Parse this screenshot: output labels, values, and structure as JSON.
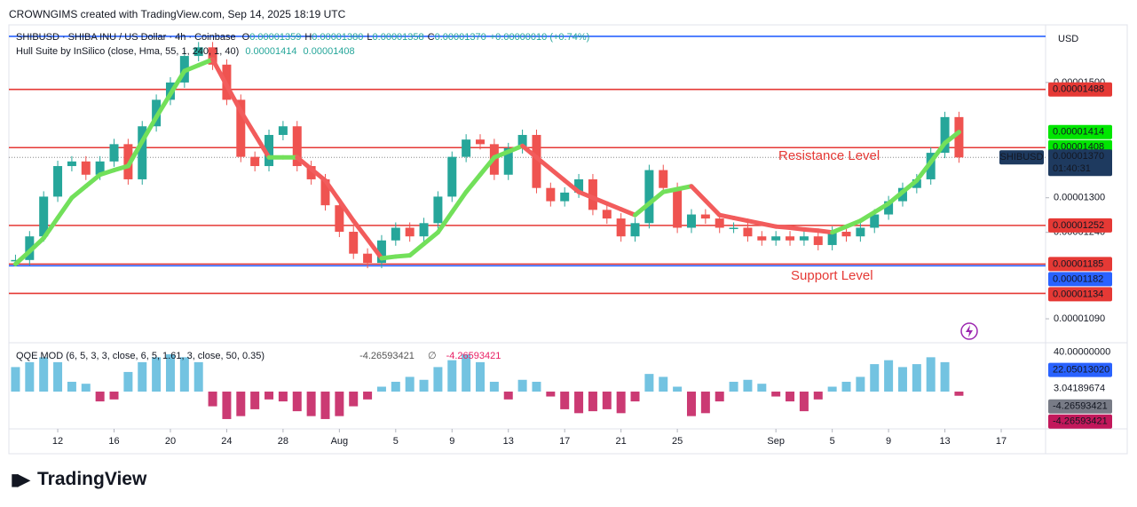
{
  "header": "CROWNGIMS created with TradingView.com, Sep 14, 2025 18:19 UTC",
  "brand": "TradingView",
  "currency": "USD",
  "chart_data": [
    {
      "type": "candle-line",
      "legend_title": "SHIBUSD · SHIBA INU / US Dollar · 4h · Coinbase",
      "ohlc": [
        {
          "key": "O",
          "value": "0.00001359"
        },
        {
          "key": "H",
          "value": "0.00001380"
        },
        {
          "key": "L",
          "value": "0.00001358"
        },
        {
          "key": "C",
          "value": "0.00001370"
        }
      ],
      "change": "+0.00000010 (+0.74%)",
      "indicator_values": [
        1.414e-05,
        1.408e-05
      ],
      "countdown": "01:40:31",
      "annotations": [
        "Resistance Level",
        "Support Level"
      ],
      "up_color": "#26a69a",
      "down_color": "#ef5350",
      "x": [
        9,
        10,
        11,
        12,
        13,
        14,
        15,
        16,
        17,
        18,
        19,
        20,
        21,
        22,
        23,
        24,
        25,
        26,
        27,
        28,
        29,
        30,
        31,
        32,
        33,
        34,
        35,
        36,
        37,
        38,
        39,
        40,
        41,
        42,
        43,
        44,
        45,
        46,
        47,
        48,
        49,
        50,
        51,
        52,
        53,
        54,
        55,
        56,
        57,
        58,
        59,
        60,
        61,
        62,
        63,
        64,
        65,
        66,
        67,
        68,
        69,
        70,
        71,
        72,
        73,
        74,
        75,
        76
      ],
      "series": [
        {
          "name": "SHIBUSD",
          "color": "#1e3a5f",
          "values": [
            1.192e-05,
            1.233e-05,
            1.302e-05,
            1.355e-05,
            1.363e-05,
            1.34e-05,
            1.363e-05,
            1.393e-05,
            1.332e-05,
            1.424e-05,
            1.47e-05,
            1.5e-05,
            1.546e-05,
            1.561e-05,
            1.531e-05,
            1.47e-05,
            1.371e-05,
            1.355e-05,
            1.409e-05,
            1.424e-05,
            1.355e-05,
            1.332e-05,
            1.287e-05,
            1.241e-05,
            1.203e-05,
            1.187e-05,
            1.226e-05,
            1.248e-05,
            1.233e-05,
            1.256e-05,
            1.302e-05,
            1.371e-05,
            1.401e-05,
            1.393e-05,
            1.34e-05,
            1.386e-05,
            1.409e-05,
            1.317e-05,
            1.294e-05,
            1.309e-05,
            1.332e-05,
            1.279e-05,
            1.264e-05,
            1.233e-05,
            1.256e-05,
            1.348e-05,
            1.317e-05,
            1.248e-05,
            1.271e-05,
            1.264e-05,
            1.248e-05,
            1.248e-05,
            1.233e-05,
            1.226e-05,
            1.233e-05,
            1.226e-05,
            1.233e-05,
            1.218e-05,
            1.241e-05,
            1.233e-05,
            1.248e-05,
            1.271e-05,
            1.294e-05,
            1.317e-05,
            1.332e-05,
            1.378e-05,
            1.44e-05,
            1.37e-05
          ]
        },
        {
          "name": "Hull Suite by InSilico (close, Hma, 55, 1, 240, 1, 40)",
          "color": "#72e05a",
          "down_color": "#f25c5c",
          "values": [
            1.185e-05,
            1.207e-05,
            1.23e-05,
            1.265e-05,
            1.3e-05,
            1.32e-05,
            1.34e-05,
            1.348e-05,
            1.355e-05,
            1.398e-05,
            1.44e-05,
            1.48e-05,
            1.52e-05,
            1.53e-05,
            1.54e-05,
            1.495e-05,
            1.45e-05,
            1.41e-05,
            1.37e-05,
            1.37e-05,
            1.37e-05,
            1.35e-05,
            1.33e-05,
            1.295e-05,
            1.26e-05,
            1.228e-05,
            1.195e-05,
            1.198e-05,
            1.2e-05,
            1.22e-05,
            1.24e-05,
            1.275e-05,
            1.31e-05,
            1.34e-05,
            1.37e-05,
            1.38e-05,
            1.39e-05,
            1.37e-05,
            1.35e-05,
            1.33e-05,
            1.31e-05,
            1.3e-05,
            1.29e-05,
            1.28e-05,
            1.27e-05,
            1.29e-05,
            1.31e-05,
            1.315e-05,
            1.32e-05,
            1.295e-05,
            1.27e-05,
            1.265e-05,
            1.26e-05,
            1.255e-05,
            1.25e-05,
            1.248e-05,
            1.245e-05,
            1.243e-05,
            1.24e-05,
            1.25e-05,
            1.26e-05,
            1.275e-05,
            1.29e-05,
            1.31e-05,
            1.33e-05,
            1.362e-05,
            1.395e-05,
            1.414e-05
          ]
        }
      ],
      "levels": [
        {
          "value": 1.58e-05,
          "color": "#2962ff",
          "labeled": false
        },
        {
          "value": 1.488e-05,
          "color": "#e53935",
          "labeled": true
        },
        {
          "value": 1.387e-05,
          "color": "#e53935",
          "labeled": true
        },
        {
          "value": 1.252e-05,
          "color": "#e53935",
          "labeled": true
        },
        {
          "value": 1.185e-05,
          "color": "#e53935",
          "labeled": true
        },
        {
          "value": 1.182e-05,
          "color": "#2962ff",
          "labeled": true
        },
        {
          "value": 1.134e-05,
          "color": "#e53935",
          "labeled": true
        }
      ],
      "xlim": [
        8.53,
        82.15
      ],
      "ylim": [
        1.05e-05,
        1.6e-05
      ],
      "yticks": [
        {
          "value": 1.5e-05,
          "label": "0.00001500"
        },
        {
          "value": 1.3e-05,
          "label": "0.00001300"
        },
        {
          "value": 1.24e-05,
          "label": "0.00001240"
        },
        {
          "value": 1.09e-05,
          "label": "0.00001090"
        }
      ],
      "xticks": [
        12,
        16,
        20,
        24,
        28,
        {
          "value": 32,
          "label": "Aug"
        },
        {
          "value": 36,
          "label": "5"
        },
        {
          "value": 40,
          "label": "9"
        },
        {
          "value": 44,
          "label": "13"
        },
        {
          "value": 48,
          "label": "17"
        },
        {
          "value": 52,
          "label": "21"
        },
        {
          "value": 56,
          "label": "25"
        },
        {
          "value": 63,
          "label": "Sep"
        },
        {
          "value": 67,
          "label": "5"
        },
        {
          "value": 71,
          "label": "9"
        },
        {
          "value": 75,
          "label": "13"
        },
        {
          "value": 79,
          "label": "17"
        }
      ],
      "grid": false
    },
    {
      "type": "histogram",
      "title": "QQE MOD (6, 5, 3, 3, close, 6, 5, 1.61, 3, close, 50, 0.35)",
      "empty_symbol": "∅",
      "x": [
        9,
        10,
        11,
        12,
        13,
        14,
        15,
        16,
        17,
        18,
        19,
        20,
        21,
        22,
        23,
        24,
        25,
        26,
        27,
        28,
        29,
        30,
        31,
        32,
        33,
        34,
        35,
        36,
        37,
        38,
        39,
        40,
        41,
        42,
        43,
        44,
        45,
        46,
        47,
        48,
        49,
        50,
        51,
        52,
        53,
        54,
        55,
        56,
        57,
        58,
        59,
        60,
        61,
        62,
        63,
        64,
        65,
        66,
        67,
        68,
        69,
        70,
        71,
        72,
        73,
        74,
        75,
        76
      ],
      "series": [
        {
          "color": "#5ab9dc",
          "negative_color": "#c2185b",
          "values": [
            25,
            30,
            35,
            30,
            10,
            8,
            -10,
            -8,
            20,
            30,
            35,
            38,
            35,
            30,
            -15,
            -28,
            -25,
            -18,
            -8,
            -10,
            -20,
            -25,
            -28,
            -25,
            -15,
            -8,
            5,
            10,
            15,
            12,
            25,
            32,
            38,
            30,
            10,
            -8,
            12,
            10,
            -5,
            -18,
            -22,
            -20,
            -18,
            -22,
            -10,
            18,
            15,
            5,
            -25,
            -22,
            -10,
            10,
            12,
            8,
            -5,
            -10,
            -20,
            -8,
            5,
            10,
            15,
            28,
            32,
            25,
            28,
            35,
            30,
            -4.26593421
          ]
        }
      ],
      "markers": [
        {
          "value": 22.0501302,
          "label": "22.05013020",
          "color": "#2962ff"
        }
      ],
      "ylim": [
        -38,
        48
      ],
      "yticks": [
        {
          "value": 40,
          "label": "40.00000000"
        },
        3.04189674
      ]
    }
  ]
}
